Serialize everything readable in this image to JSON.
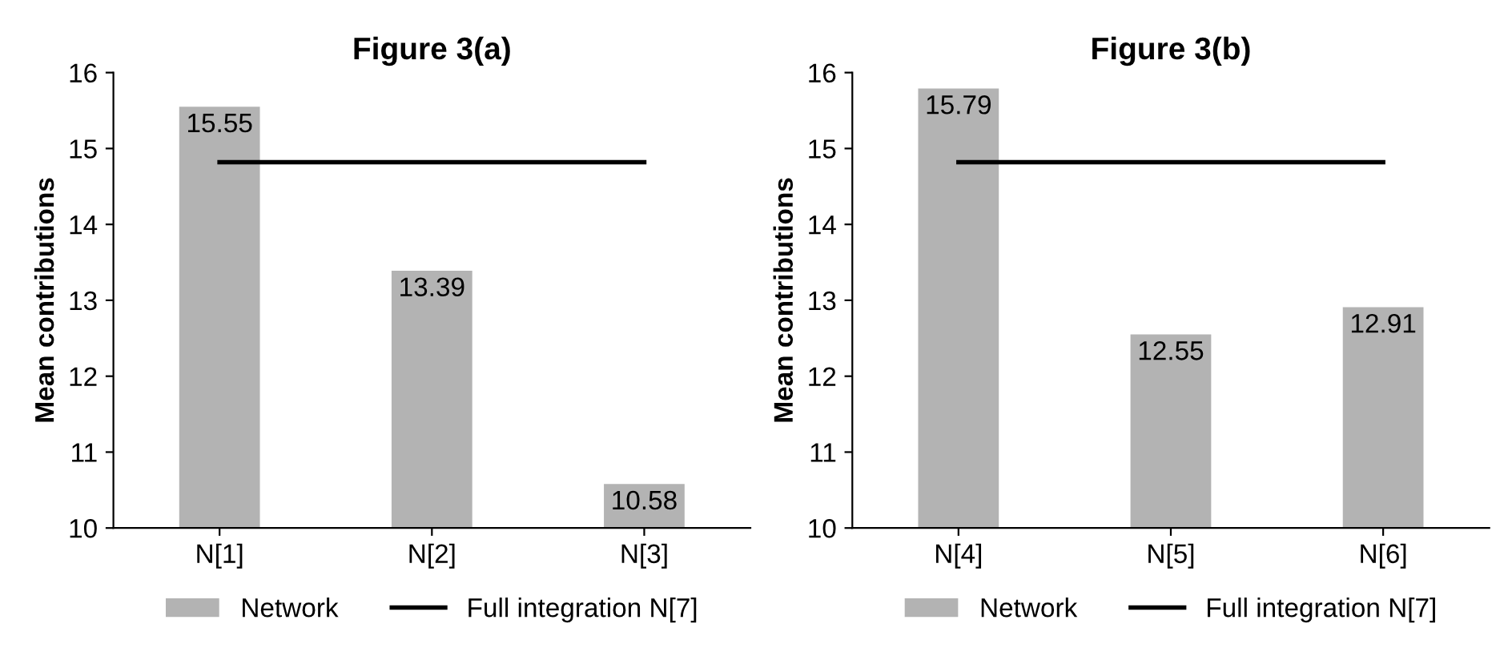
{
  "chart_data": [
    {
      "type": "bar",
      "title": "Figure 3(a)",
      "ylabel": "Mean contributions",
      "categories": [
        "N[1]",
        "N[2]",
        "N[3]"
      ],
      "series": [
        {
          "name": "Network",
          "color": "#b3b3b3",
          "values": [
            15.55,
            13.39,
            10.58
          ],
          "value_labels": [
            "15.55",
            "13.39",
            "10.58"
          ]
        },
        {
          "name": "Full integration N[7]",
          "type": "line",
          "color": "#000000",
          "values": [
            14.82,
            14.82,
            14.82
          ]
        }
      ],
      "ylim": [
        10,
        16
      ],
      "yticks": [
        10,
        11,
        12,
        13,
        14,
        15,
        16
      ],
      "grid": false,
      "legend": "bottom",
      "marker": "none",
      "line_style": "solid"
    },
    {
      "type": "bar",
      "title": "Figure 3(b)",
      "ylabel": "Mean contributions",
      "categories": [
        "N[4]",
        "N[5]",
        "N[6]"
      ],
      "series": [
        {
          "name": "Network",
          "color": "#b3b3b3",
          "values": [
            15.79,
            12.55,
            12.91
          ],
          "value_labels": [
            "15.79",
            "12.55",
            "12.91"
          ]
        },
        {
          "name": "Full integration N[7]",
          "type": "line",
          "color": "#000000",
          "values": [
            14.82,
            14.82,
            14.82
          ]
        }
      ],
      "ylim": [
        10,
        16
      ],
      "yticks": [
        10,
        11,
        12,
        13,
        14,
        15,
        16
      ],
      "grid": false,
      "legend": "bottom",
      "marker": "none",
      "line_style": "solid"
    }
  ]
}
